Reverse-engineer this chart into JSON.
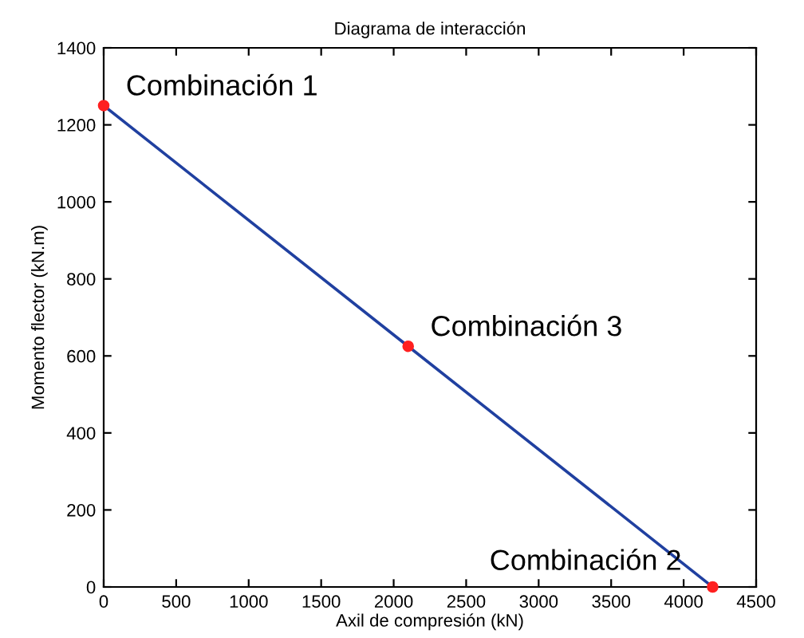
{
  "chart_data": {
    "type": "line",
    "title": "Diagrama de interacción",
    "xlabel": "Axil de compresión (kN)",
    "ylabel": "Momento flector (kN.m)",
    "series": [
      {
        "color": "#2040a0",
        "x": [
          0,
          2100,
          4200
        ],
        "values": [
          1250,
          625,
          0
        ],
        "marker": "none"
      },
      {
        "type": "scatter",
        "color": "#ff2020",
        "x": [
          0,
          2100,
          4200
        ],
        "values": [
          1250,
          625,
          0
        ],
        "marker": "circle"
      }
    ],
    "annotations": [
      {
        "text": "Combinación 1",
        "x": 0,
        "y": 1250
      },
      {
        "text": "Combinación 3",
        "x": 2100,
        "y": 625
      },
      {
        "text": "Combinación 2",
        "x": 4200,
        "y": 0
      }
    ],
    "xlim": [
      0,
      4500
    ],
    "xticks": [
      0,
      500,
      1000,
      1500,
      2000,
      2500,
      3000,
      3500,
      4000,
      4500
    ],
    "ylim": [
      0,
      1400
    ],
    "yticks": [
      0,
      200,
      400,
      600,
      800,
      1000,
      1200,
      1400
    ],
    "grid": false,
    "legend": false
  }
}
